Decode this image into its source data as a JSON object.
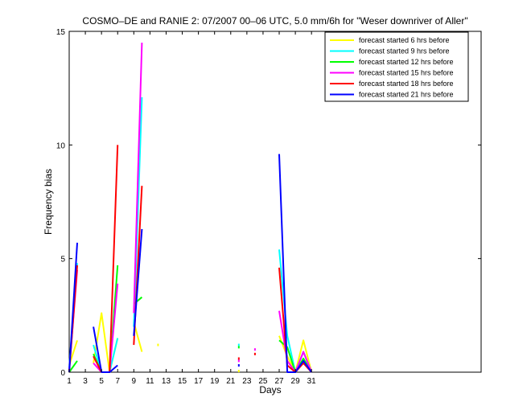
{
  "chart_data": {
    "type": "line",
    "title": "COSMO–DE and RANIE 2: 07/2007 00–06 UTC, 5.0 mm/6h for \"Weser downriver of Aller\"",
    "xlabel": "Days",
    "ylabel": "Frequency bias",
    "xlim": [
      1,
      52
    ],
    "ylim": [
      0,
      15
    ],
    "xticks": [
      1,
      3,
      5,
      7,
      9,
      11,
      13,
      15,
      17,
      19,
      21,
      23,
      25,
      27,
      29,
      31
    ],
    "yticks": [
      0,
      5,
      10,
      15
    ],
    "legend_position": "top-right",
    "series": [
      {
        "name": "forecast started 6 hrs before",
        "color": "#ffff00",
        "values": [
          [
            1,
            0.3
          ],
          [
            2,
            1.4
          ],
          [
            null,
            null
          ],
          [
            4,
            0.4
          ],
          [
            5,
            2.6
          ],
          [
            6,
            0.0
          ],
          [
            7,
            1.5
          ],
          [
            null,
            null
          ],
          [
            9,
            2.2
          ],
          [
            10,
            0.9
          ],
          [
            null,
            null
          ],
          [
            12,
            1.2
          ],
          [
            null,
            null
          ],
          [
            22,
            0.05
          ],
          [
            null,
            null
          ],
          [
            27,
            1.6
          ],
          [
            28,
            0.7
          ],
          [
            29,
            0.0
          ],
          [
            30,
            1.4
          ],
          [
            31,
            0.0
          ]
        ]
      },
      {
        "name": "forecast started 9 hrs before",
        "color": "#00ffff",
        "values": [
          [
            1,
            0.2
          ],
          [
            2,
            4.8
          ],
          [
            null,
            null
          ],
          [
            4,
            1.2
          ],
          [
            5,
            0.0
          ],
          [
            6,
            0.0
          ],
          [
            7,
            1.5
          ],
          [
            null,
            null
          ],
          [
            9,
            2.0
          ],
          [
            10,
            12.1
          ],
          [
            null,
            null
          ],
          [
            22,
            1.2
          ],
          [
            null,
            null
          ],
          [
            27,
            5.4
          ],
          [
            28,
            1.6
          ],
          [
            29,
            0.0
          ],
          [
            30,
            0.9
          ],
          [
            31,
            0.0
          ]
        ]
      },
      {
        "name": "forecast started 12 hrs before",
        "color": "#00ff00",
        "values": [
          [
            1,
            0.0
          ],
          [
            2,
            0.5
          ],
          [
            null,
            null
          ],
          [
            4,
            0.8
          ],
          [
            5,
            0.0
          ],
          [
            6,
            0.0
          ],
          [
            7,
            4.7
          ],
          [
            null,
            null
          ],
          [
            9,
            3.0
          ],
          [
            10,
            3.3
          ],
          [
            null,
            null
          ],
          [
            22,
            1.1
          ],
          [
            null,
            null
          ],
          [
            27,
            1.4
          ],
          [
            28,
            1.1
          ],
          [
            29,
            0.0
          ],
          [
            30,
            0.6
          ],
          [
            31,
            0.0
          ]
        ]
      },
      {
        "name": "forecast started 15 hrs before",
        "color": "#ff00ff",
        "values": [
          [
            1,
            0.1
          ],
          [
            2,
            4.5
          ],
          [
            null,
            null
          ],
          [
            4,
            0.4
          ],
          [
            5,
            0.0
          ],
          [
            6,
            0.0
          ],
          [
            7,
            3.9
          ],
          [
            null,
            null
          ],
          [
            9,
            2.6
          ],
          [
            10,
            14.5
          ],
          [
            null,
            null
          ],
          [
            22,
            0.5
          ],
          [
            null,
            null
          ],
          [
            24,
            1.0
          ],
          [
            null,
            null
          ],
          [
            27,
            2.7
          ],
          [
            28,
            0.5
          ],
          [
            29,
            0.0
          ],
          [
            30,
            0.9
          ],
          [
            31,
            0.0
          ]
        ]
      },
      {
        "name": "forecast started 18 hrs before",
        "color": "#ff0000",
        "values": [
          [
            1,
            0.0
          ],
          [
            2,
            4.7
          ],
          [
            null,
            null
          ],
          [
            4,
            0.7
          ],
          [
            5,
            0.0
          ],
          [
            6,
            0.0
          ],
          [
            7,
            10.0
          ],
          [
            null,
            null
          ],
          [
            9,
            1.2
          ],
          [
            10,
            8.2
          ],
          [
            null,
            null
          ],
          [
            22,
            0.6
          ],
          [
            null,
            null
          ],
          [
            24,
            0.8
          ],
          [
            null,
            null
          ],
          [
            27,
            4.6
          ],
          [
            28,
            0.3
          ],
          [
            29,
            0.0
          ],
          [
            30,
            0.4
          ],
          [
            31,
            0.0
          ]
        ]
      },
      {
        "name": "forecast started 21 hrs before",
        "color": "#0000ff",
        "values": [
          [
            1,
            0.0
          ],
          [
            2,
            5.7
          ],
          [
            null,
            null
          ],
          [
            4,
            2.0
          ],
          [
            5,
            0.0
          ],
          [
            6,
            0.0
          ],
          [
            7,
            0.3
          ],
          [
            null,
            null
          ],
          [
            9,
            1.6
          ],
          [
            10,
            6.3
          ],
          [
            null,
            null
          ],
          [
            22,
            0.3
          ],
          [
            null,
            null
          ],
          [
            27,
            9.6
          ],
          [
            28,
            0.0
          ],
          [
            29,
            0.0
          ],
          [
            30,
            0.5
          ],
          [
            31,
            0.0
          ]
        ]
      }
    ]
  }
}
